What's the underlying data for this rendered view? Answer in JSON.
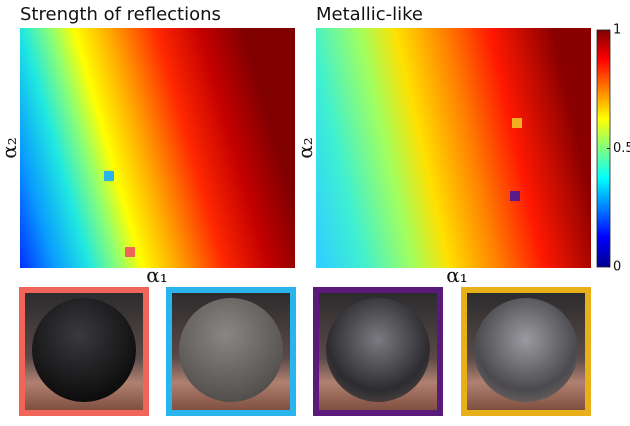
{
  "chart_data": [
    {
      "type": "heatmap",
      "title": "Strength of reflections",
      "xlabel": "α₁",
      "ylabel": "α₂"
    },
    {
      "type": "heatmap",
      "title": "Metallic-like",
      "xlabel": "α₁",
      "ylabel": "α₂",
      "colorbar": {
        "clim": [
          0,
          1
        ],
        "ticks": [
          0,
          0.5,
          1
        ]
      }
    }
  ]
}
